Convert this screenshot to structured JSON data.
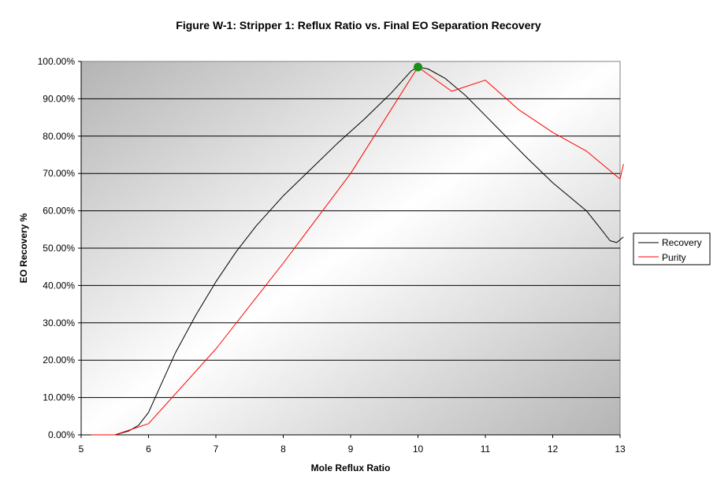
{
  "chart_data": {
    "type": "line",
    "title": "Figure W-1:  Stripper 1:  Reflux Ratio vs. Final EO Separation Recovery",
    "xlabel": "Mole Reflux Ratio",
    "ylabel": "EO Recovery %",
    "xlim": [
      5,
      13
    ],
    "ylim": [
      0,
      1
    ],
    "x_ticks": [
      "5",
      "6",
      "7",
      "8",
      "9",
      "10",
      "11",
      "12",
      "13"
    ],
    "y_ticks": [
      "0.00%",
      "10.00%",
      "20.00%",
      "30.00%",
      "40.00%",
      "50.00%",
      "60.00%",
      "70.00%",
      "80.00%",
      "90.00%",
      "100.00%"
    ],
    "grid": "horizontal",
    "legend_position": "right",
    "series": [
      {
        "name": "Recovery",
        "color": "#000000",
        "x": [
          5.15,
          5.5,
          5.7,
          5.85,
          6.0,
          6.15,
          6.4,
          6.7,
          7.0,
          7.3,
          7.6,
          8.0,
          8.4,
          8.8,
          9.2,
          9.6,
          9.9,
          10.0,
          10.15,
          10.4,
          10.7,
          11.0,
          11.3,
          11.6,
          12.0,
          12.3,
          12.5,
          12.7,
          12.85,
          12.95,
          13.05
        ],
        "y": [
          0.0,
          0.0,
          0.01,
          0.025,
          0.06,
          0.12,
          0.22,
          0.32,
          0.41,
          0.49,
          0.56,
          0.64,
          0.71,
          0.78,
          0.845,
          0.915,
          0.975,
          0.985,
          0.98,
          0.955,
          0.91,
          0.855,
          0.8,
          0.745,
          0.675,
          0.63,
          0.6,
          0.555,
          0.52,
          0.515,
          0.53
        ]
      },
      {
        "name": "Purity",
        "color": "#ff0000",
        "x": [
          5.15,
          5.5,
          6.0,
          7.0,
          8.0,
          9.0,
          10.0,
          10.5,
          11.0,
          11.5,
          12.0,
          12.5,
          13.0,
          13.05
        ],
        "y": [
          0.0,
          0.0,
          0.03,
          0.23,
          0.46,
          0.7,
          0.985,
          0.92,
          0.95,
          0.87,
          0.81,
          0.76,
          0.685,
          0.725
        ]
      }
    ],
    "marker": {
      "x": 10.0,
      "y": 0.985,
      "color": "#1a8f1a"
    }
  }
}
